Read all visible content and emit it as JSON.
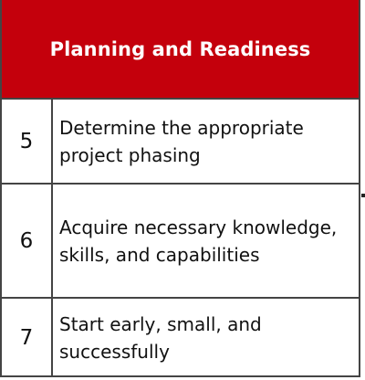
{
  "title": "Planning and Readiness",
  "colors": {
    "header_bg": "#c4000c",
    "header_text": "#ffffff",
    "border": "#444444",
    "text": "#111111"
  },
  "rows": [
    {
      "number": "5",
      "text": "Determine the appropriate project phasing"
    },
    {
      "number": "6",
      "text": "Acquire necessary knowledge, skills, and capabilities"
    },
    {
      "number": "7",
      "text": "Start early, small, and successfully"
    }
  ]
}
